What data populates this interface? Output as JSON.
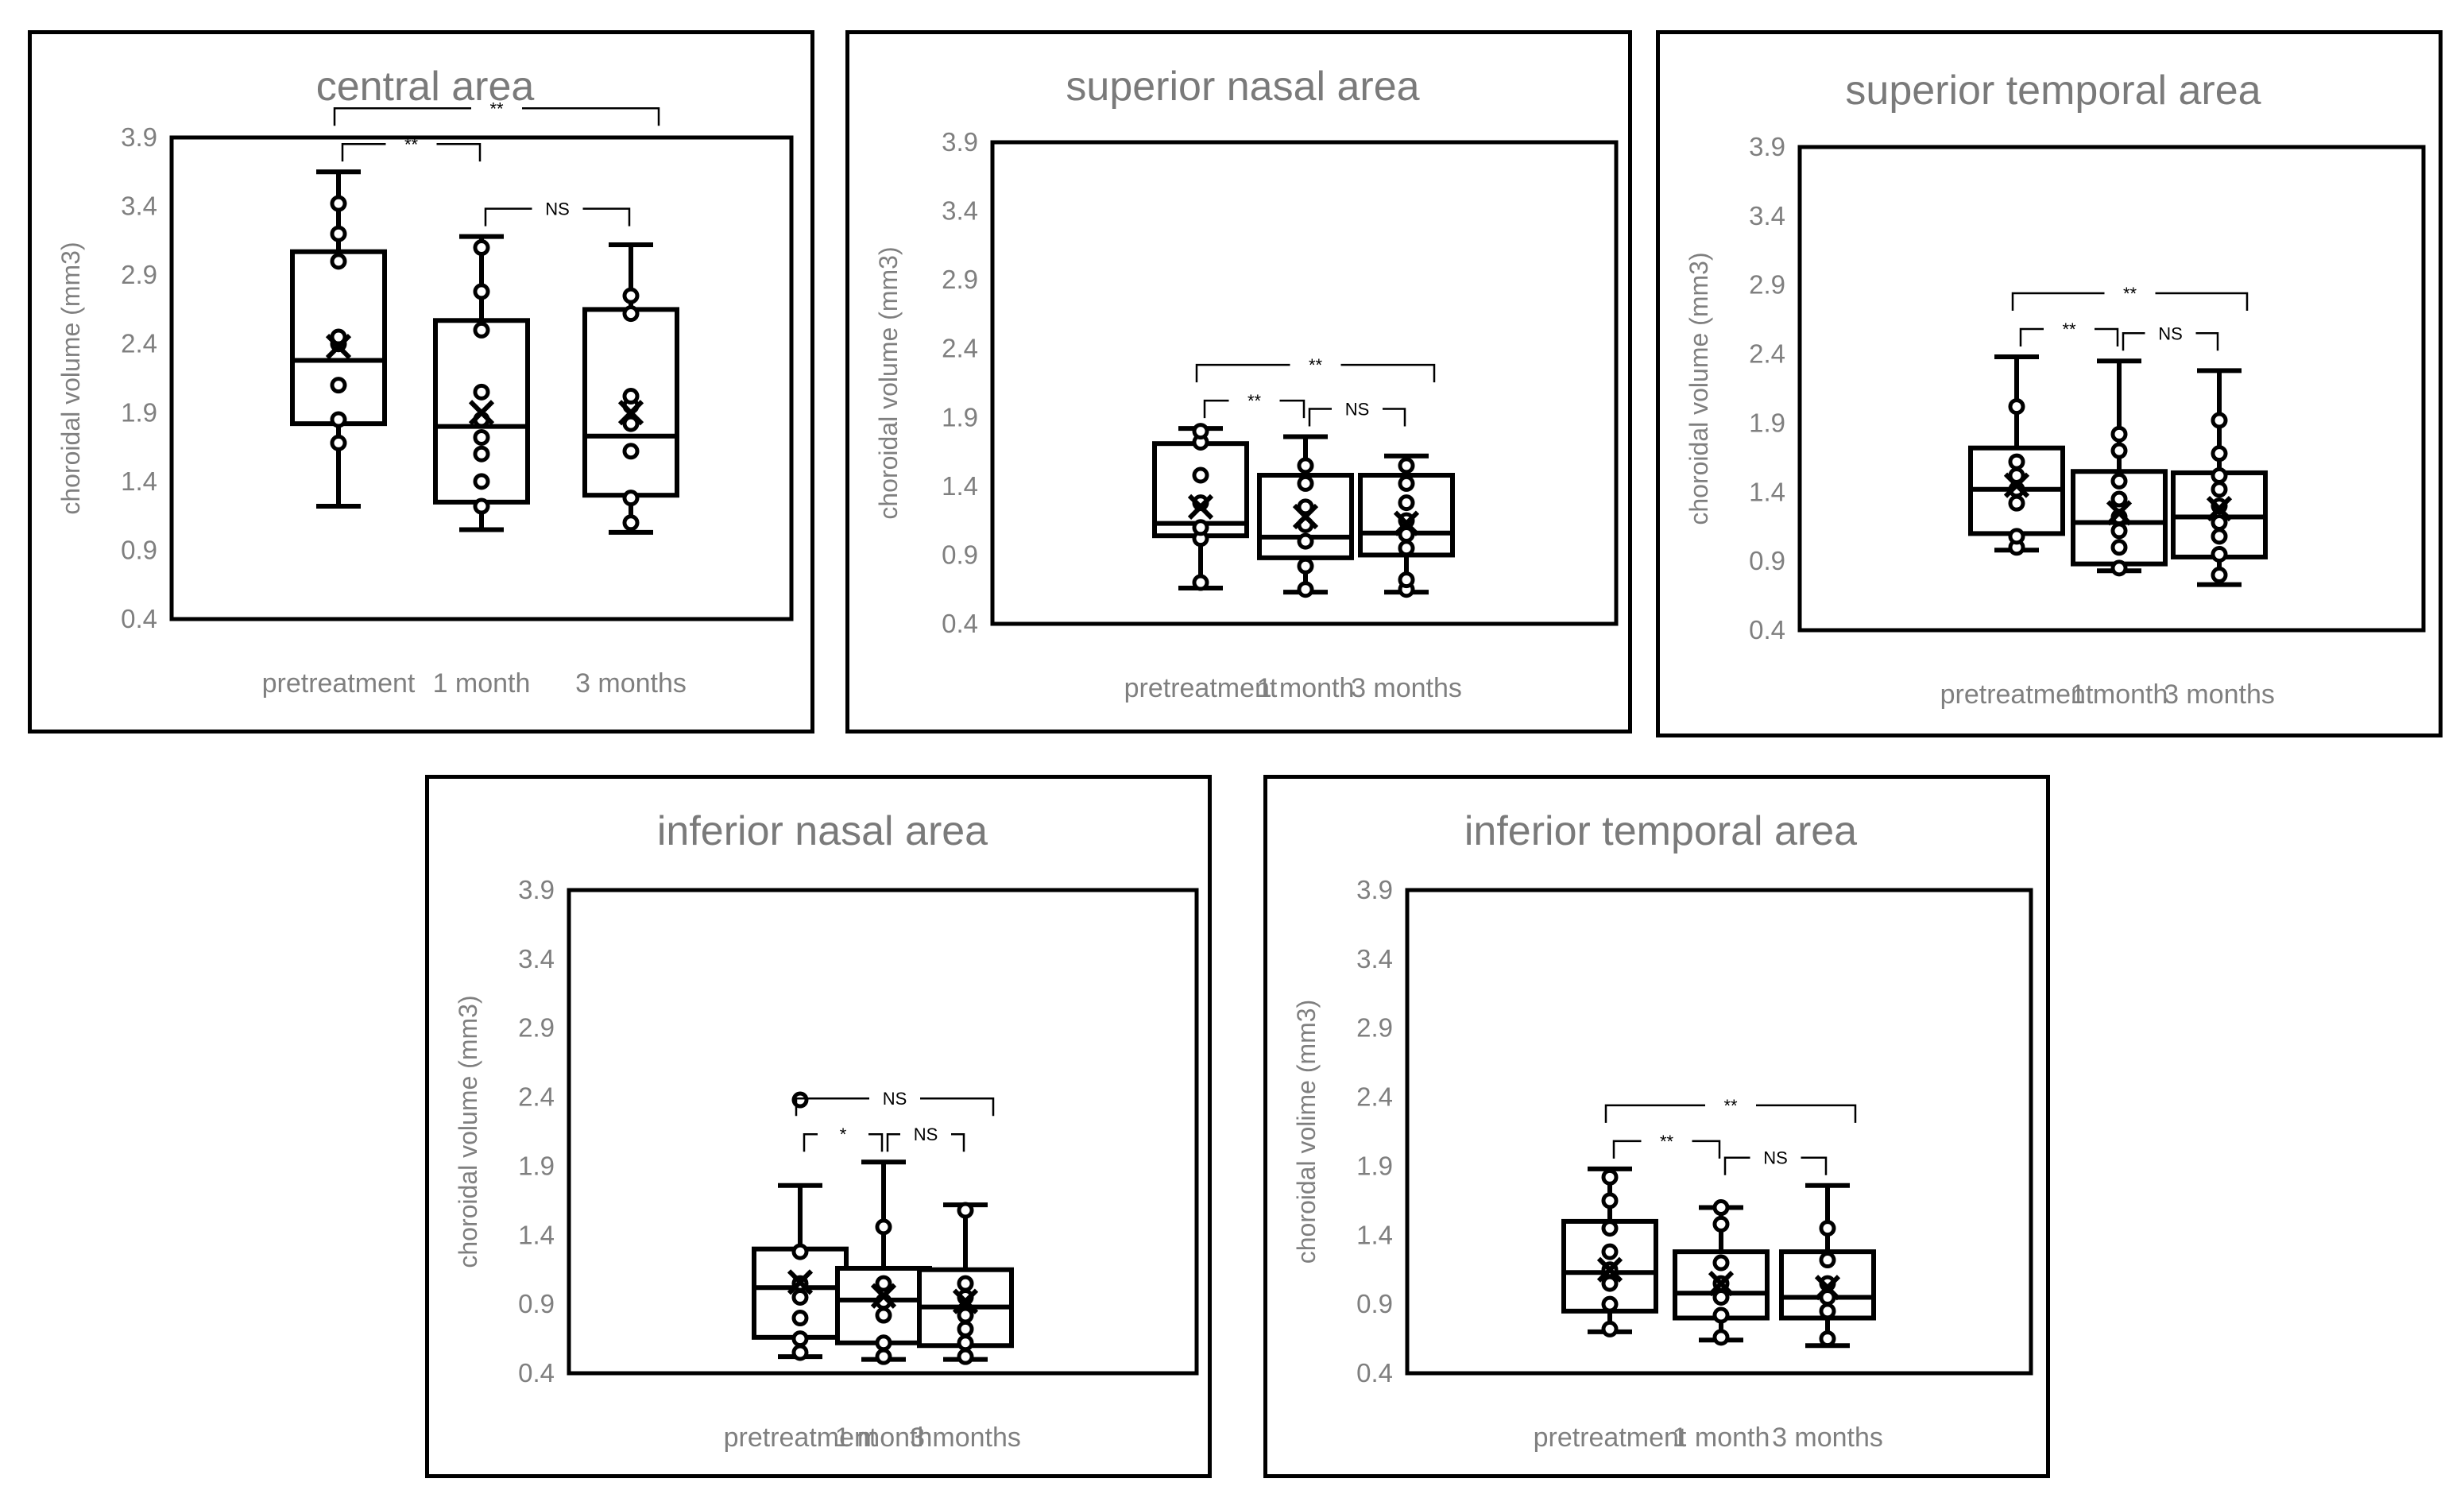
{
  "chart_data": [
    {
      "type": "box",
      "title": "central area",
      "ylabel": "choroidal volume (mm3)",
      "xlabel": "",
      "yticks": [
        "0.4",
        "0.9",
        "1.4",
        "1.9",
        "2.4",
        "2.9",
        "3.4",
        "3.9"
      ],
      "ylim": [
        0.4,
        3.9
      ],
      "categories": [
        "pretreatment",
        "1 month",
        "3 months"
      ],
      "boxes": [
        {
          "min": 1.22,
          "q1": 1.82,
          "median": 2.28,
          "q3": 3.07,
          "max": 3.65,
          "mean": 2.38,
          "points": [
            1.68,
            1.85,
            2.1,
            2.4,
            2.45,
            3.0,
            3.2,
            3.42
          ]
        },
        {
          "min": 1.05,
          "q1": 1.25,
          "median": 1.8,
          "q3": 2.57,
          "max": 3.18,
          "mean": 1.9,
          "points": [
            1.22,
            1.4,
            1.6,
            1.72,
            1.85,
            2.05,
            2.5,
            2.78,
            3.1
          ]
        },
        {
          "min": 1.03,
          "q1": 1.3,
          "median": 1.73,
          "q3": 2.65,
          "max": 3.12,
          "mean": 1.9,
          "points": [
            1.1,
            1.28,
            1.62,
            1.82,
            1.95,
            2.02,
            2.62,
            2.75
          ]
        }
      ],
      "significance": [
        {
          "groups": [
            "pretreatment",
            "1 month"
          ],
          "label": "**"
        },
        {
          "groups": [
            "pretreatment",
            "3 months"
          ],
          "label": "**"
        },
        {
          "groups": [
            "1 month",
            "3 months"
          ],
          "label": "NS"
        }
      ]
    },
    {
      "type": "box",
      "title": "superior nasal area",
      "ylabel": "choroidal volume (mm3)",
      "xlabel": "",
      "yticks": [
        "0.4",
        "0.9",
        "1.4",
        "1.9",
        "2.4",
        "2.9",
        "3.4",
        "3.9"
      ],
      "ylim": [
        0.4,
        3.9
      ],
      "categories": [
        "pretreatment",
        "1 month",
        "3 months"
      ],
      "boxes": [
        {
          "min": 0.66,
          "q1": 1.04,
          "median": 1.13,
          "q3": 1.71,
          "max": 1.82,
          "mean": 1.25,
          "points": [
            0.7,
            1.02,
            1.1,
            1.28,
            1.48,
            1.72,
            1.8
          ]
        },
        {
          "min": 0.63,
          "q1": 0.88,
          "median": 1.03,
          "q3": 1.48,
          "max": 1.76,
          "mean": 1.18,
          "points": [
            0.65,
            0.82,
            1.0,
            1.12,
            1.25,
            1.42,
            1.55
          ]
        },
        {
          "min": 0.63,
          "q1": 0.9,
          "median": 1.06,
          "q3": 1.48,
          "max": 1.62,
          "mean": 1.13,
          "points": [
            0.65,
            0.72,
            0.95,
            1.05,
            1.15,
            1.28,
            1.42,
            1.55
          ]
        }
      ],
      "significance": [
        {
          "groups": [
            "pretreatment",
            "1 month"
          ],
          "label": "**"
        },
        {
          "groups": [
            "pretreatment",
            "3 months"
          ],
          "label": "**"
        },
        {
          "groups": [
            "1 month",
            "3 months"
          ],
          "label": "NS"
        }
      ]
    },
    {
      "type": "box",
      "title": "superior temporal area",
      "ylabel": "choroidal volume (mm3)",
      "xlabel": "",
      "yticks": [
        "0.4",
        "0.9",
        "1.4",
        "1.9",
        "2.4",
        "2.9",
        "3.4",
        "3.9"
      ],
      "ylim": [
        0.4,
        3.9
      ],
      "categories": [
        "pretreatment",
        "1 month",
        "3 months"
      ],
      "boxes": [
        {
          "min": 0.98,
          "q1": 1.1,
          "median": 1.42,
          "q3": 1.72,
          "max": 2.38,
          "mean": 1.45,
          "points": [
            1.0,
            1.08,
            1.32,
            1.42,
            1.52,
            1.62,
            2.02
          ]
        },
        {
          "min": 0.83,
          "q1": 0.88,
          "median": 1.18,
          "q3": 1.55,
          "max": 2.35,
          "mean": 1.25,
          "points": [
            0.85,
            1.0,
            1.12,
            1.22,
            1.35,
            1.48,
            1.7,
            1.82
          ]
        },
        {
          "min": 0.73,
          "q1": 0.93,
          "median": 1.22,
          "q3": 1.54,
          "max": 2.28,
          "mean": 1.28,
          "points": [
            0.8,
            0.95,
            1.08,
            1.18,
            1.3,
            1.42,
            1.52,
            1.68,
            1.92
          ]
        }
      ],
      "significance": [
        {
          "groups": [
            "pretreatment",
            "1 month"
          ],
          "label": "**"
        },
        {
          "groups": [
            "pretreatment",
            "3 months"
          ],
          "label": "**"
        },
        {
          "groups": [
            "1 month",
            "3 months"
          ],
          "label": "NS"
        }
      ]
    },
    {
      "type": "box",
      "title": "inferior nasal area",
      "ylabel": "choroidal volume (mm3)",
      "xlabel": "",
      "yticks": [
        "0.4",
        "0.9",
        "1.4",
        "1.9",
        "2.4",
        "2.9",
        "3.4",
        "3.9"
      ],
      "ylim": [
        0.4,
        3.9
      ],
      "categories": [
        "pretreatment",
        "1 month",
        "3 months"
      ],
      "boxes": [
        {
          "min": 0.52,
          "q1": 0.66,
          "median": 1.02,
          "q3": 1.3,
          "max": 1.76,
          "mean": 1.06,
          "points": [
            0.55,
            0.65,
            0.8,
            0.95,
            1.05,
            1.28,
            2.38
          ]
        },
        {
          "min": 0.5,
          "q1": 0.62,
          "median": 0.93,
          "q3": 1.16,
          "max": 1.93,
          "mean": 0.96,
          "points": [
            0.52,
            0.62,
            0.82,
            0.92,
            1.05,
            1.46
          ]
        },
        {
          "min": 0.5,
          "q1": 0.6,
          "median": 0.88,
          "q3": 1.15,
          "max": 1.62,
          "mean": 0.92,
          "points": [
            0.52,
            0.62,
            0.72,
            0.82,
            0.95,
            1.05,
            1.58
          ]
        }
      ],
      "significance": [
        {
          "groups": [
            "pretreatment",
            "1 month"
          ],
          "label": "*"
        },
        {
          "groups": [
            "pretreatment",
            "3 months"
          ],
          "label": "NS"
        },
        {
          "groups": [
            "1 month",
            "3 months"
          ],
          "label": "NS"
        }
      ]
    },
    {
      "type": "box",
      "title": "inferior temporal area",
      "ylabel": "choroidal volime (mm3)",
      "xlabel": "",
      "yticks": [
        "0.4",
        "0.9",
        "1.4",
        "1.9",
        "2.4",
        "2.9",
        "3.4",
        "3.9"
      ],
      "ylim": [
        0.4,
        3.9
      ],
      "categories": [
        "pretreatment",
        "1 month",
        "3 months"
      ],
      "boxes": [
        {
          "min": 0.7,
          "q1": 0.85,
          "median": 1.13,
          "q3": 1.5,
          "max": 1.88,
          "mean": 1.15,
          "points": [
            0.72,
            0.9,
            1.05,
            1.15,
            1.28,
            1.45,
            1.65,
            1.82
          ]
        },
        {
          "min": 0.64,
          "q1": 0.8,
          "median": 0.98,
          "q3": 1.28,
          "max": 1.6,
          "mean": 1.05,
          "points": [
            0.66,
            0.82,
            0.95,
            1.05,
            1.2,
            1.48,
            1.6
          ]
        },
        {
          "min": 0.6,
          "q1": 0.8,
          "median": 0.95,
          "q3": 1.28,
          "max": 1.76,
          "mean": 1.02,
          "points": [
            0.65,
            0.85,
            0.95,
            1.05,
            1.22,
            1.45
          ]
        }
      ],
      "significance": [
        {
          "groups": [
            "pretreatment",
            "1 month"
          ],
          "label": "**"
        },
        {
          "groups": [
            "pretreatment",
            "3 months"
          ],
          "label": "**"
        },
        {
          "groups": [
            "1 month",
            "3 months"
          ],
          "label": "NS"
        }
      ]
    }
  ]
}
